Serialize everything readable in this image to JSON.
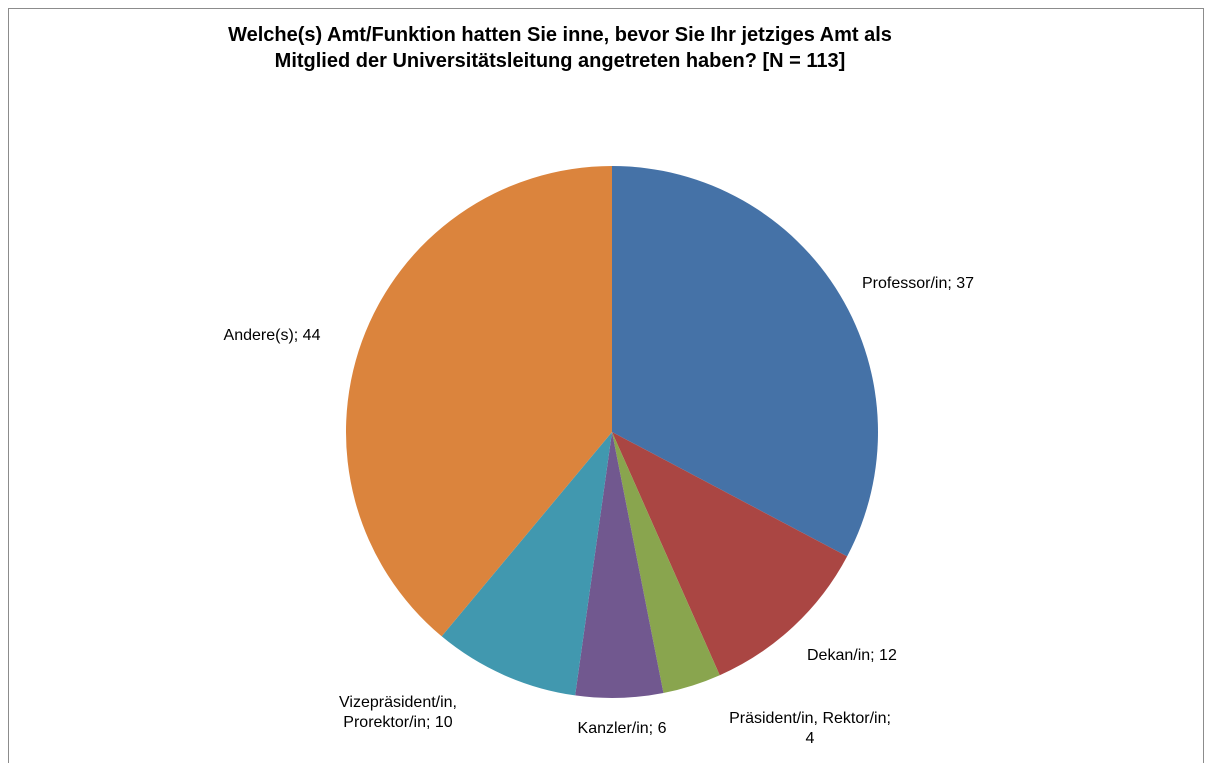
{
  "chart_data": {
    "type": "pie",
    "title": "Welche(s) Amt/Funktion hatten Sie inne, bevor Sie Ihr jetziges Amt als Mitglied der Universitätsleitung angetreten haben? [N = 113]",
    "title_lines": [
      "Welche(s) Amt/Funktion hatten Sie inne, bevor Sie Ihr jetziges Amt als",
      "Mitglied der Universitätsleitung angetreten haben? [N = 113]"
    ],
    "slices": [
      {
        "label": "Professor/in",
        "value": 37,
        "color": "#4572A7",
        "label_lines": [
          "Professor/in; 37"
        ]
      },
      {
        "label": "Dekan/in",
        "value": 12,
        "color": "#AA4643",
        "label_lines": [
          "Dekan/in; 12"
        ]
      },
      {
        "label": "Präsident/in, Rektor/in",
        "value": 4,
        "color": "#89A54E",
        "label_lines": [
          "Präsident/in, Rektor/in;",
          "4"
        ]
      },
      {
        "label": "Kanzler/in",
        "value": 6,
        "color": "#71588F",
        "label_lines": [
          "Kanzler/in; 6"
        ]
      },
      {
        "label": "Vizepräsident/in, Prorektor/in",
        "value": 10,
        "color": "#4198AF",
        "label_lines": [
          "Vizepräsident/in,",
          "Prorektor/in; 10"
        ]
      },
      {
        "label": "Andere(s)",
        "value": 44,
        "color": "#DB843D",
        "label_lines": [
          "Andere(s); 44"
        ]
      }
    ],
    "legend": "none"
  }
}
